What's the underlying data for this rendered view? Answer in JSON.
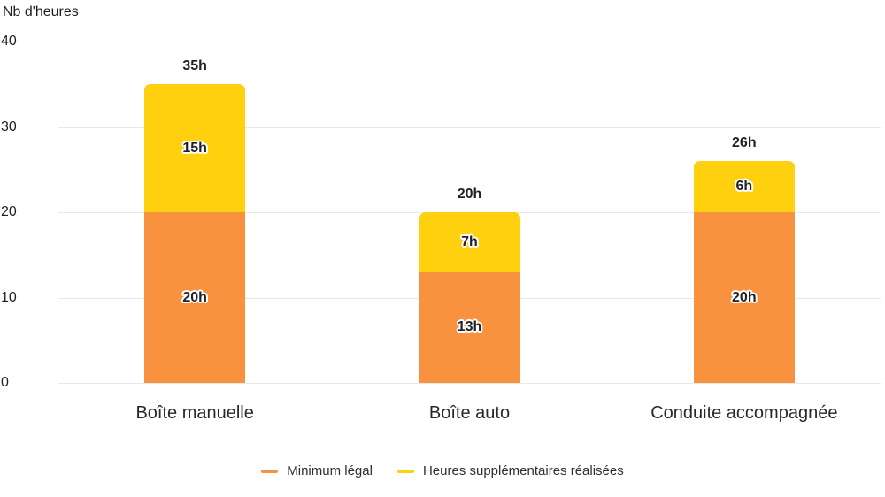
{
  "chart_data": {
    "type": "bar",
    "stacked": true,
    "title": "",
    "ylabel": "Nb d'heures",
    "xlabel": "",
    "categories": [
      "Boîte manuelle",
      "Boîte auto",
      "Conduite accompagnée"
    ],
    "series": [
      {
        "name": "Minimum légal",
        "color": "#F8923F",
        "values": [
          20,
          13,
          20
        ],
        "value_labels": [
          "20h",
          "13h",
          "20h"
        ]
      },
      {
        "name": "Heures supplémentaires réalisées",
        "color": "#FFD00E",
        "values": [
          15,
          7,
          6
        ],
        "value_labels": [
          "15h",
          "7h",
          "6h"
        ]
      }
    ],
    "totals": [
      35,
      20,
      26
    ],
    "total_labels": [
      "35h",
      "20h",
      "26h"
    ],
    "ylim": [
      0,
      40
    ],
    "yticks": [
      0,
      10,
      20,
      30,
      40
    ],
    "grid": true,
    "legend_position": "bottom",
    "colors": {
      "gridline": "#e8e8e8",
      "text": "#222226"
    }
  }
}
